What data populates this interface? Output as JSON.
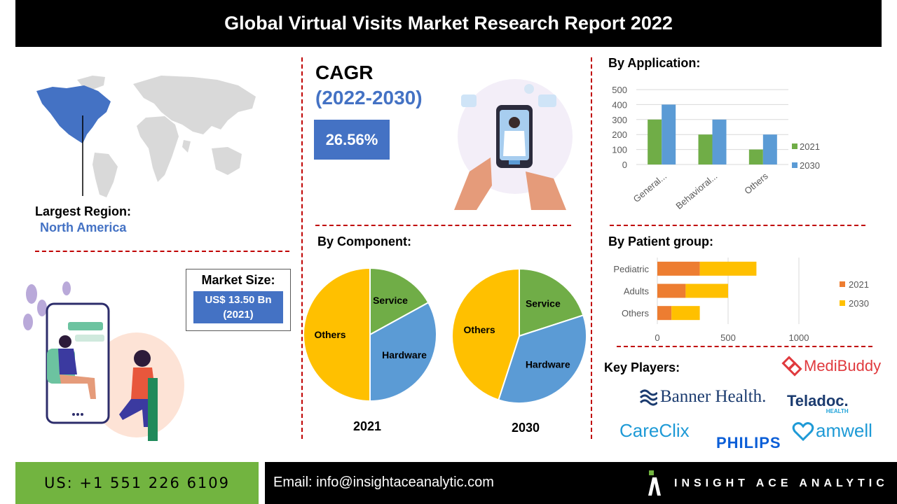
{
  "header": {
    "title": "Global Virtual Visits Market Research Report 2022"
  },
  "region": {
    "label": "Largest Region:",
    "value": "North America"
  },
  "market_size": {
    "label": "Market Size:",
    "value_line1": "US$ 13.50 Bn",
    "value_line2": "(2021)"
  },
  "cagr": {
    "label": "CAGR",
    "period": "(2022-2030)",
    "value": "26.56%"
  },
  "sections": {
    "component": "By Component:",
    "application": "By Application:",
    "patient": "By Patient group:",
    "key_players": "Key Players:"
  },
  "key_players": {
    "medibuddy": "MediBuddy",
    "banner": "Banner Health.",
    "teladoc": "Teladoc.",
    "teladoc_sub": "HEALTH",
    "careclix": "CareClix",
    "philips": "PHILIPS",
    "amwell": "amwell"
  },
  "footer": {
    "phone": "US: +1 551 226 6109",
    "email": "Email: info@insightaceanalytic.com",
    "brand": "INSIGHT ACE ANALYTIC"
  },
  "colors": {
    "green": "#70ad47",
    "blue": "#5b9bd5",
    "orange": "#ed7d31",
    "yellow": "#ffc000",
    "accent_blue": "#4472c4",
    "dash_red": "#c00000"
  },
  "chart_data": [
    {
      "type": "bar",
      "title": "By Application:",
      "categories": [
        "General...",
        "Behavioral...",
        "Others"
      ],
      "series": [
        {
          "name": "2021",
          "values": [
            300,
            200,
            100
          ],
          "color": "#70ad47"
        },
        {
          "name": "2030",
          "values": [
            400,
            300,
            200
          ],
          "color": "#5b9bd5"
        }
      ],
      "yticks": [
        "0",
        "100",
        "200",
        "300",
        "400",
        "500"
      ],
      "ylim": [
        0,
        500
      ],
      "grid": true,
      "legend": "right"
    },
    {
      "type": "bar",
      "orientation": "horizontal-stacked",
      "title": "By Patient group:",
      "categories": [
        "Pediatric",
        "Adults",
        "Others"
      ],
      "series": [
        {
          "name": "2021",
          "values": [
            300,
            200,
            100
          ],
          "color": "#ed7d31"
        },
        {
          "name": "2030",
          "values": [
            400,
            300,
            200
          ],
          "color": "#ffc000"
        }
      ],
      "xticks": [
        "0",
        "500",
        "1000"
      ],
      "xlim": [
        0,
        1000
      ],
      "grid": true,
      "legend": "right"
    },
    {
      "type": "pie",
      "title": "2021",
      "slices": [
        {
          "label": "Service",
          "value": 17,
          "color": "#70ad47"
        },
        {
          "label": "Hardware",
          "value": 33,
          "color": "#5b9bd5"
        },
        {
          "label": "Others",
          "value": 50,
          "color": "#ffc000"
        }
      ]
    },
    {
      "type": "pie",
      "title": "2030",
      "slices": [
        {
          "label": "Service",
          "value": 20,
          "color": "#70ad47"
        },
        {
          "label": "Hardware",
          "value": 35,
          "color": "#5b9bd5"
        },
        {
          "label": "Others",
          "value": 45,
          "color": "#ffc000"
        }
      ]
    }
  ]
}
